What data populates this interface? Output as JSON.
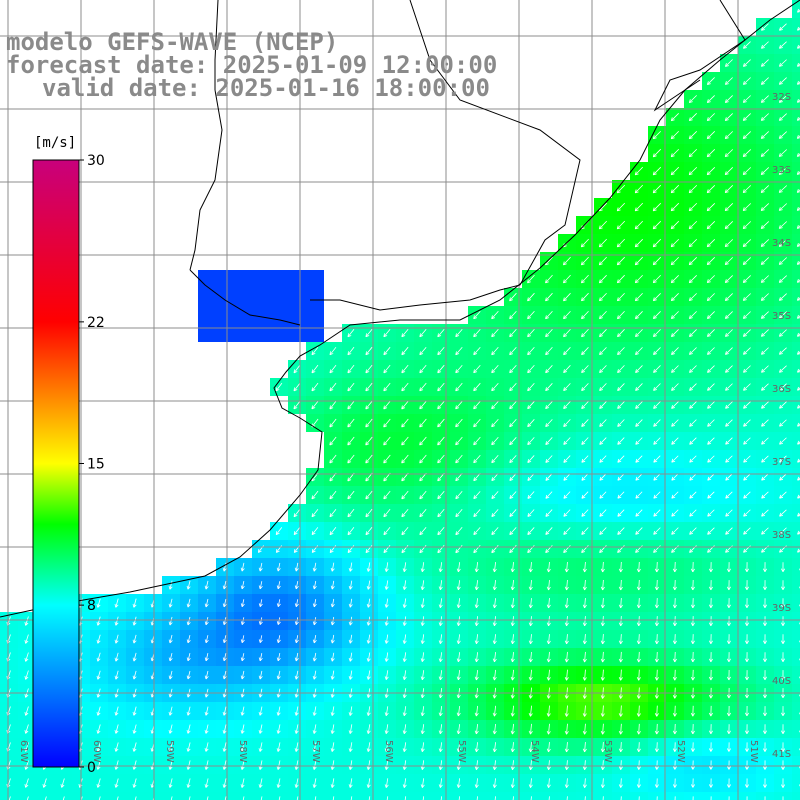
{
  "title": {
    "line1": "modelo GEFS-WAVE (NCEP)",
    "line2": "forecast date: 2025-01-09 12:00:00",
    "line3": "valid date: 2025-01-16 18:00:00"
  },
  "colorbar": {
    "unit": "[m/s]",
    "ticks": [
      "30",
      "22",
      "15",
      "8",
      "0"
    ],
    "tick_values": [
      30,
      22,
      15,
      8,
      0
    ],
    "range": [
      0,
      30
    ],
    "stops": [
      "#0000ff",
      "#00ffff",
      "#00ff00",
      "#ffff00",
      "#ff0000",
      "#c8007c"
    ]
  },
  "map": {
    "lon_range": [
      -61,
      -50
    ],
    "lat_range": [
      -42,
      -32
    ],
    "lat_labels": [
      "32S",
      "33S",
      "34S",
      "35S",
      "36S",
      "37S",
      "38S",
      "39S",
      "40S",
      "41S"
    ],
    "lon_labels": [
      "61W",
      "60W",
      "59W",
      "58W",
      "57W",
      "56W",
      "55W",
      "54W",
      "53W",
      "52W",
      "51W"
    ],
    "land_color": "#ffffff",
    "grid_color": "#8c8c8c",
    "coast_color": "#000000",
    "arrow_color": "#ffffff",
    "field": "wind speed with direction arrows"
  }
}
